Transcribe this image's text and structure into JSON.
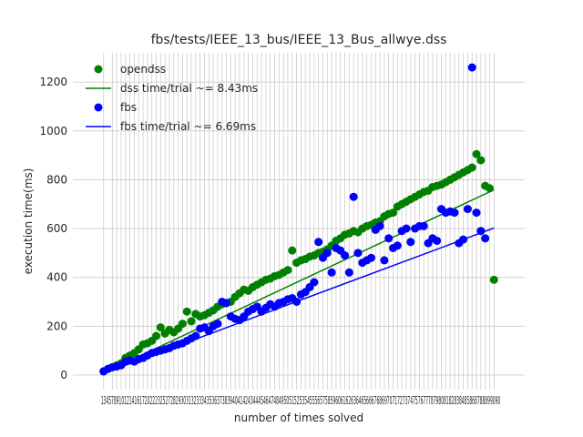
{
  "chart_data": {
    "type": "scatter",
    "title": "fbs/tests/IEEE_13_bus/IEEE_13_Bus_allwye.dss",
    "xlabel": "number of times solved",
    "ylabel": "execution time(ms)",
    "xlim": [
      -6,
      97
    ],
    "ylim": [
      -60,
      1320
    ],
    "yticks": [
      0,
      200,
      400,
      600,
      800,
      1000,
      1200
    ],
    "xticks": [
      1,
      3,
      4,
      5,
      6,
      7,
      8,
      9,
      10,
      11,
      12,
      13,
      14,
      15,
      16,
      17,
      18,
      19,
      20,
      21,
      22,
      23,
      24,
      25,
      26,
      27,
      28,
      29,
      30,
      31,
      32,
      33,
      34,
      35,
      36,
      37,
      38,
      39,
      40,
      41,
      42,
      43,
      44,
      45,
      46,
      47,
      48,
      49,
      50,
      51,
      52,
      53,
      54,
      55,
      56,
      57,
      58,
      59,
      60,
      61,
      62,
      63,
      64,
      65,
      66,
      67,
      68,
      69,
      70,
      71,
      72,
      73,
      74,
      75,
      76,
      77,
      78,
      79,
      80,
      81,
      82,
      83,
      84,
      85,
      86,
      87,
      88,
      89,
      90
    ],
    "xtick_labels_visible": "13457891012141617202223252728293031323334353637383940414243444546474849505152535455565758596061626364656667686970717273747576777879808182838485868788899090",
    "grid": true,
    "legend_position": "top-left",
    "legend": [
      {
        "label": "opendss",
        "kind": "marker",
        "color": "#008000"
      },
      {
        "label": "dss time/trial ~= 8.43ms",
        "kind": "line",
        "color": "#008000"
      },
      {
        "label": "fbs",
        "kind": "marker",
        "color": "#0000ff"
      },
      {
        "label": "fbs time/trial ~= 6.69ms",
        "kind": "line",
        "color": "#0000ff"
      }
    ],
    "series": [
      {
        "name": "opendss",
        "color": "#008000",
        "x": [
          1,
          2,
          3,
          4,
          5,
          6,
          7,
          8,
          9,
          10,
          11,
          12,
          13,
          14,
          15,
          16,
          17,
          18,
          19,
          20,
          21,
          22,
          23,
          24,
          25,
          26,
          27,
          28,
          29,
          30,
          31,
          32,
          33,
          34,
          35,
          36,
          37,
          38,
          39,
          40,
          41,
          42,
          43,
          44,
          45,
          46,
          47,
          48,
          49,
          50,
          51,
          52,
          53,
          54,
          55,
          56,
          57,
          58,
          59,
          60,
          61,
          62,
          63,
          64,
          65,
          66,
          67,
          68,
          69,
          70,
          71,
          72,
          73,
          74,
          75,
          76,
          77,
          78,
          79,
          80,
          81,
          82,
          83,
          84,
          85,
          86,
          87,
          88,
          89,
          90
        ],
        "y": [
          15,
          25,
          32,
          40,
          48,
          70,
          80,
          90,
          105,
          125,
          130,
          140,
          160,
          195,
          170,
          185,
          175,
          190,
          210,
          260,
          220,
          250,
          240,
          245,
          255,
          265,
          280,
          290,
          295,
          300,
          320,
          335,
          350,
          345,
          360,
          370,
          380,
          390,
          395,
          405,
          410,
          420,
          430,
          510,
          460,
          470,
          475,
          485,
          490,
          500,
          505,
          515,
          530,
          550,
          560,
          575,
          580,
          590,
          585,
          600,
          610,
          615,
          625,
          630,
          650,
          660,
          665,
          690,
          700,
          710,
          720,
          730,
          740,
          750,
          755,
          770,
          775,
          780,
          790,
          800,
          810,
          820,
          830,
          840,
          850,
          905,
          880,
          775,
          765,
          390
        ]
      },
      {
        "name": "fbs",
        "color": "#0000ff",
        "x": [
          1,
          2,
          3,
          4,
          5,
          6,
          7,
          8,
          9,
          10,
          11,
          12,
          13,
          14,
          15,
          16,
          17,
          18,
          19,
          20,
          21,
          22,
          23,
          24,
          25,
          26,
          27,
          28,
          29,
          30,
          31,
          32,
          33,
          34,
          35,
          36,
          37,
          38,
          39,
          40,
          41,
          42,
          43,
          44,
          45,
          46,
          47,
          48,
          49,
          50,
          51,
          52,
          53,
          54,
          55,
          56,
          57,
          58,
          59,
          60,
          61,
          62,
          63,
          64,
          65,
          66,
          67,
          68,
          69,
          70,
          71,
          72,
          73,
          74,
          75,
          76,
          77,
          78,
          79,
          80,
          81,
          82,
          83,
          84,
          85,
          86,
          87,
          88
        ],
        "y": [
          15,
          25,
          32,
          35,
          40,
          55,
          60,
          55,
          65,
          70,
          80,
          90,
          95,
          100,
          105,
          110,
          120,
          125,
          130,
          140,
          150,
          160,
          190,
          195,
          180,
          200,
          210,
          300,
          295,
          240,
          230,
          225,
          240,
          260,
          270,
          280,
          260,
          275,
          290,
          280,
          295,
          300,
          310,
          315,
          300,
          330,
          340,
          360,
          380,
          545,
          480,
          500,
          420,
          520,
          510,
          490,
          420,
          730,
          500,
          460,
          470,
          480,
          595,
          610,
          470,
          560,
          520,
          530,
          590,
          600,
          545,
          600,
          610,
          610,
          540,
          560,
          550,
          680,
          665,
          670,
          665,
          540,
          555,
          680,
          1260,
          665,
          590,
          560
        ]
      }
    ],
    "fit_lines": [
      {
        "name": "dss time/trial ~= 8.43ms",
        "color": "#008000",
        "x": [
          1,
          90
        ],
        "y": [
          8.43,
          758.7
        ]
      },
      {
        "name": "fbs time/trial ~= 6.69ms",
        "color": "#0000ff",
        "x": [
          1,
          90
        ],
        "y": [
          6.69,
          602.1
        ]
      }
    ]
  }
}
